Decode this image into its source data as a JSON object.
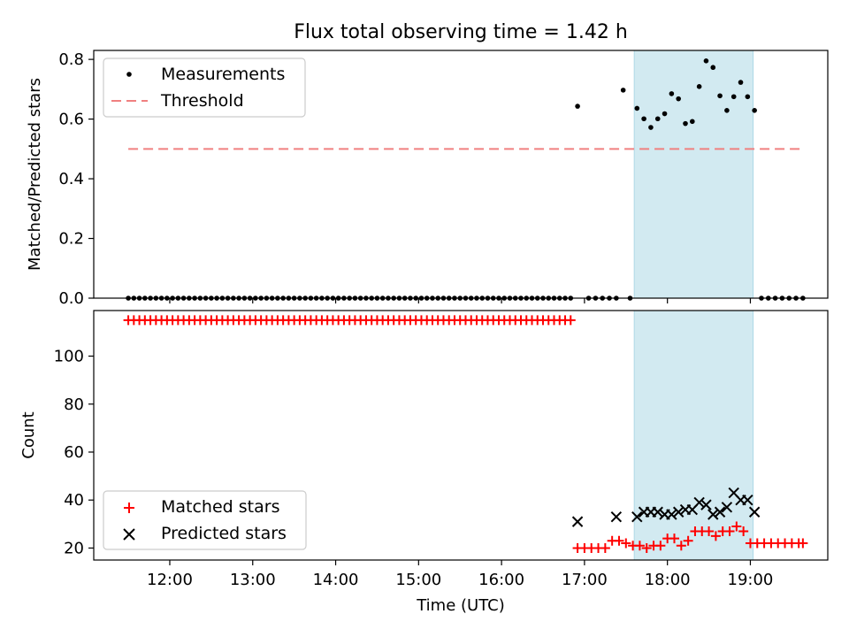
{
  "chart_data": [
    {
      "type": "scatter",
      "title": "Flux total observing time = 1.42 h",
      "ylabel": "Matched/Predicted stars",
      "xlim": [
        "11:05",
        "19:56"
      ],
      "ylim": [
        0,
        0.83
      ],
      "yticks": [
        "0.0",
        "0.2",
        "0.4",
        "0.6",
        "0.8"
      ],
      "shaded_interval": [
        "17:36",
        "19:02"
      ],
      "legend_placement": "upper-left",
      "series": [
        {
          "name": "Measurements",
          "marker": "dot",
          "color": "#000000",
          "x": [
            "11:30",
            "11:34",
            "11:38",
            "11:42",
            "11:46",
            "11:50",
            "11:54",
            "11:58",
            "12:02",
            "12:06",
            "12:10",
            "12:14",
            "12:18",
            "12:22",
            "12:26",
            "12:30",
            "12:34",
            "12:38",
            "12:42",
            "12:46",
            "12:50",
            "12:54",
            "12:58",
            "13:02",
            "13:06",
            "13:10",
            "13:14",
            "13:18",
            "13:22",
            "13:26",
            "13:30",
            "13:34",
            "13:38",
            "13:42",
            "13:46",
            "13:50",
            "13:54",
            "13:58",
            "14:02",
            "14:06",
            "14:10",
            "14:14",
            "14:18",
            "14:22",
            "14:26",
            "14:30",
            "14:34",
            "14:38",
            "14:42",
            "14:46",
            "14:50",
            "14:54",
            "14:58",
            "15:02",
            "15:06",
            "15:10",
            "15:14",
            "15:18",
            "15:22",
            "15:26",
            "15:30",
            "15:34",
            "15:38",
            "15:42",
            "15:46",
            "15:50",
            "15:54",
            "15:58",
            "16:02",
            "16:06",
            "16:10",
            "16:14",
            "16:18",
            "16:22",
            "16:26",
            "16:30",
            "16:34",
            "16:38",
            "16:42",
            "16:46",
            "16:50",
            "16:55",
            "17:03",
            "17:08",
            "17:13",
            "17:18",
            "17:23",
            "17:28",
            "17:33",
            "17:38",
            "17:43",
            "17:48",
            "17:53",
            "17:58",
            "18:03",
            "18:08",
            "18:13",
            "18:18",
            "18:23",
            "18:28",
            "18:33",
            "18:38",
            "18:43",
            "18:48",
            "18:53",
            "18:58",
            "19:03",
            "19:08",
            "19:13",
            "19:18",
            "19:23",
            "19:28",
            "19:33",
            "19:38"
          ],
          "y": [
            0,
            0,
            0,
            0,
            0,
            0,
            0,
            0,
            0,
            0,
            0,
            0,
            0,
            0,
            0,
            0,
            0,
            0,
            0,
            0,
            0,
            0,
            0,
            0,
            0,
            0,
            0,
            0,
            0,
            0,
            0,
            0,
            0,
            0,
            0,
            0,
            0,
            0,
            0,
            0,
            0,
            0,
            0,
            0,
            0,
            0,
            0,
            0,
            0,
            0,
            0,
            0,
            0,
            0,
            0,
            0,
            0,
            0,
            0,
            0,
            0,
            0,
            0,
            0,
            0,
            0,
            0,
            0,
            0,
            0,
            0,
            0,
            0,
            0,
            0,
            0,
            0,
            0,
            0,
            0,
            0,
            0.643,
            0,
            0,
            0,
            0,
            0,
            0.697,
            0,
            0.636,
            0.601,
            0.572,
            0.601,
            0.618,
            0.685,
            0.668,
            0.585,
            0.592,
            0.709,
            0.795,
            0.773,
            0.678,
            0.629,
            0.675,
            0.723,
            0.675,
            0.629,
            0,
            0,
            0,
            0,
            0,
            0,
            0
          ]
        },
        {
          "name": "Threshold",
          "marker": "dashed-line",
          "color": "#f08080",
          "x": [
            "11:30",
            "19:38"
          ],
          "y": [
            0.5,
            0.5
          ]
        }
      ]
    },
    {
      "type": "scatter",
      "xlabel": "Time (UTC)",
      "ylabel": "Count",
      "xlim": [
        "11:05",
        "19:56"
      ],
      "ylim": [
        15,
        119
      ],
      "xticks": [
        "12:00",
        "13:00",
        "14:00",
        "15:00",
        "16:00",
        "17:00",
        "18:00",
        "19:00"
      ],
      "yticks": [
        "20",
        "40",
        "60",
        "80",
        "100"
      ],
      "shaded_interval": [
        "17:36",
        "19:02"
      ],
      "legend_placement": "lower-left",
      "series": [
        {
          "name": "Matched stars",
          "marker": "plus",
          "color": "#ff0000",
          "x": [
            "11:30",
            "11:34",
            "11:38",
            "11:42",
            "11:46",
            "11:50",
            "11:54",
            "11:58",
            "12:02",
            "12:06",
            "12:10",
            "12:14",
            "12:18",
            "12:22",
            "12:26",
            "12:30",
            "12:34",
            "12:38",
            "12:42",
            "12:46",
            "12:50",
            "12:54",
            "12:58",
            "13:02",
            "13:06",
            "13:10",
            "13:14",
            "13:18",
            "13:22",
            "13:26",
            "13:30",
            "13:34",
            "13:38",
            "13:42",
            "13:46",
            "13:50",
            "13:54",
            "13:58",
            "14:02",
            "14:06",
            "14:10",
            "14:14",
            "14:18",
            "14:22",
            "14:26",
            "14:30",
            "14:34",
            "14:38",
            "14:42",
            "14:46",
            "14:50",
            "14:54",
            "14:58",
            "15:02",
            "15:06",
            "15:10",
            "15:14",
            "15:18",
            "15:22",
            "15:26",
            "15:30",
            "15:34",
            "15:38",
            "15:42",
            "15:46",
            "15:50",
            "15:54",
            "15:58",
            "16:02",
            "16:06",
            "16:10",
            "16:14",
            "16:18",
            "16:22",
            "16:26",
            "16:30",
            "16:34",
            "16:38",
            "16:42",
            "16:46",
            "16:50",
            "16:55",
            "17:00",
            "17:05",
            "17:10",
            "17:15",
            "17:20",
            "17:25",
            "17:30",
            "17:35",
            "17:40",
            "17:45",
            "17:50",
            "17:55",
            "18:00",
            "18:05",
            "18:10",
            "18:15",
            "18:20",
            "18:25",
            "18:30",
            "18:35",
            "18:40",
            "18:45",
            "18:50",
            "18:55",
            "19:00",
            "19:05",
            "19:10",
            "19:15",
            "19:20",
            "19:25",
            "19:30",
            "19:35",
            "19:38"
          ],
          "y": [
            115,
            115,
            115,
            115,
            115,
            115,
            115,
            115,
            115,
            115,
            115,
            115,
            115,
            115,
            115,
            115,
            115,
            115,
            115,
            115,
            115,
            115,
            115,
            115,
            115,
            115,
            115,
            115,
            115,
            115,
            115,
            115,
            115,
            115,
            115,
            115,
            115,
            115,
            115,
            115,
            115,
            115,
            115,
            115,
            115,
            115,
            115,
            115,
            115,
            115,
            115,
            115,
            115,
            115,
            115,
            115,
            115,
            115,
            115,
            115,
            115,
            115,
            115,
            115,
            115,
            115,
            115,
            115,
            115,
            115,
            115,
            115,
            115,
            115,
            115,
            115,
            115,
            115,
            115,
            115,
            115,
            20,
            20,
            20,
            20,
            20,
            23,
            23,
            22,
            21,
            21,
            20,
            21,
            21,
            24,
            24,
            21,
            23,
            27,
            27,
            27,
            25,
            27,
            27,
            29,
            27,
            22,
            22,
            22,
            22,
            22,
            22,
            22,
            22,
            22
          ]
        },
        {
          "name": "Predicted stars",
          "marker": "x",
          "color": "#000000",
          "x": [
            "16:55",
            "17:23",
            "17:38",
            "17:43",
            "17:48",
            "17:53",
            "17:58",
            "18:03",
            "18:08",
            "18:13",
            "18:18",
            "18:23",
            "18:28",
            "18:33",
            "18:38",
            "18:43",
            "18:48",
            "18:53",
            "18:58",
            "19:03"
          ],
          "y": [
            31,
            33,
            33,
            35,
            35,
            35,
            34,
            34,
            35,
            36,
            36,
            39,
            38,
            34,
            35,
            37,
            43,
            40,
            40,
            35
          ]
        }
      ]
    }
  ]
}
